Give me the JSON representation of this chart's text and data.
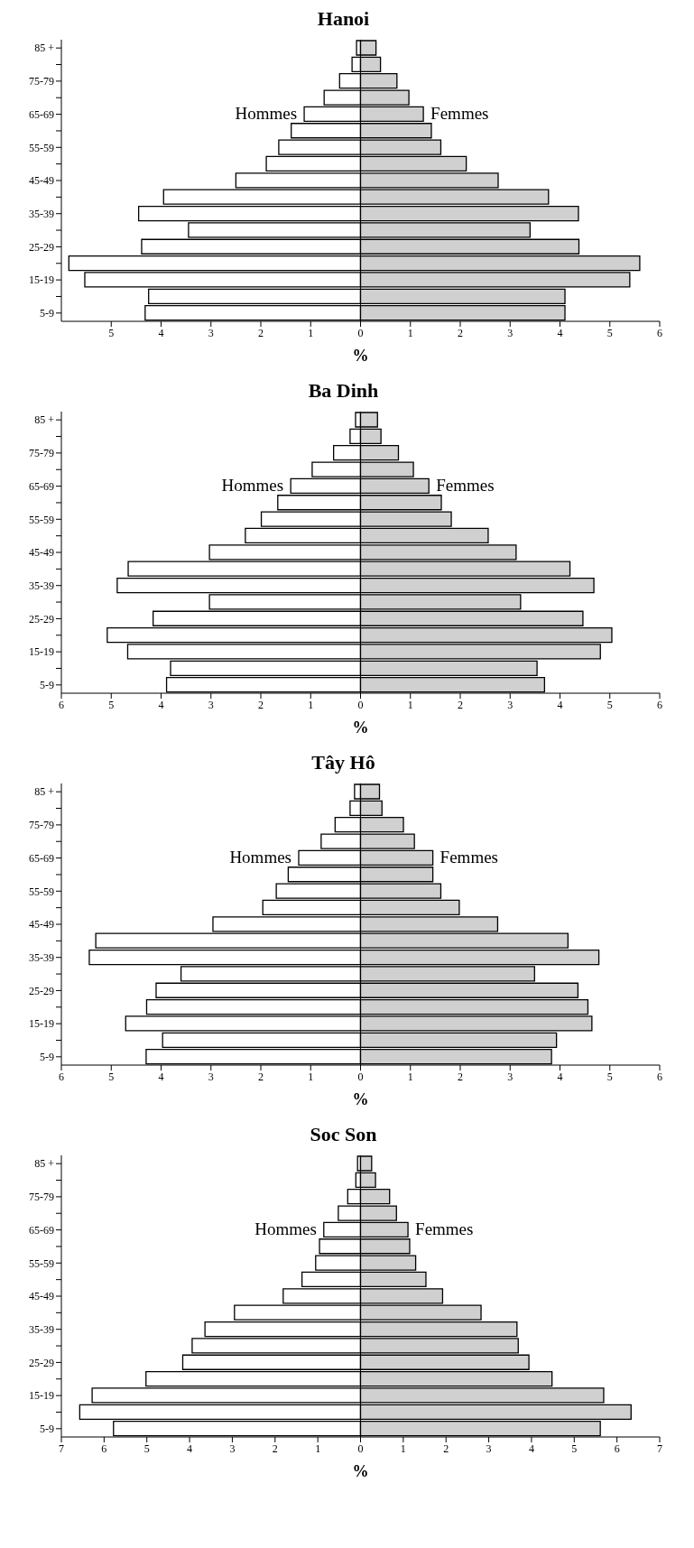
{
  "chart_data": [
    {
      "type": "bar",
      "orientation": "horizontal",
      "stacked": true,
      "title": "Hanoi",
      "xlabel": "%",
      "categories": [
        "85 +",
        null,
        "75-79",
        null,
        "65-69",
        null,
        "55-59",
        null,
        "45-49",
        null,
        "35-39",
        null,
        "25-29",
        null,
        "15-19",
        null,
        "5-9"
      ],
      "series": [
        {
          "name": "Hommes",
          "color": "#ffffff",
          "values": [
            -0.08,
            -0.17,
            -0.42,
            -0.73,
            -1.13,
            -1.39,
            -1.64,
            -1.89,
            -2.5,
            -3.95,
            -4.45,
            -3.45,
            -4.39,
            -5.85,
            -5.53,
            -4.25,
            -4.32
          ]
        },
        {
          "name": "Femmes",
          "color": "#d0d0d0",
          "values": [
            0.31,
            0.4,
            0.73,
            0.97,
            1.26,
            1.42,
            1.61,
            2.12,
            2.76,
            3.77,
            4.37,
            3.4,
            4.38,
            5.6,
            5.4,
            4.1,
            4.1
          ]
        }
      ],
      "xlim": [
        -6,
        6
      ],
      "xticks": [
        {
          "value": -5,
          "label": "5"
        },
        {
          "value": -4,
          "label": "4"
        },
        {
          "value": -3,
          "label": "3"
        },
        {
          "value": -2,
          "label": "2"
        },
        {
          "value": -1,
          "label": "1"
        },
        0,
        1,
        2,
        3,
        4,
        5,
        6
      ]
    },
    {
      "type": "bar",
      "orientation": "horizontal",
      "stacked": true,
      "title": "Ba Dinh",
      "xlabel": "%",
      "categories": [
        "85 +",
        null,
        "75-79",
        null,
        "65-69",
        null,
        "55-59",
        null,
        "45-49",
        null,
        "35-39",
        null,
        "25-29",
        null,
        "15-19",
        null,
        "5-9"
      ],
      "series": [
        {
          "name": "Hommes",
          "color": "#ffffff",
          "values": [
            -0.1,
            -0.21,
            -0.54,
            -0.97,
            -1.4,
            -1.66,
            -1.99,
            -2.31,
            -3.03,
            -4.66,
            -4.88,
            -3.03,
            -4.16,
            -5.08,
            -4.67,
            -3.81,
            -3.89
          ]
        },
        {
          "name": "Femmes",
          "color": "#d0d0d0",
          "values": [
            0.34,
            0.41,
            0.76,
            1.06,
            1.37,
            1.62,
            1.82,
            2.56,
            3.12,
            4.2,
            4.68,
            3.21,
            4.46,
            5.04,
            4.81,
            3.54,
            3.69
          ]
        }
      ],
      "xlim": [
        -6,
        6
      ],
      "xticks": [
        {
          "value": -6,
          "label": "6"
        },
        {
          "value": -5,
          "label": "5"
        },
        {
          "value": -4,
          "label": "4"
        },
        {
          "value": -3,
          "label": "3"
        },
        {
          "value": -2,
          "label": "2"
        },
        {
          "value": -1,
          "label": "1"
        },
        0,
        1,
        2,
        3,
        4,
        5,
        6
      ]
    },
    {
      "type": "bar",
      "orientation": "horizontal",
      "stacked": true,
      "title": "Tây Hô",
      "xlabel": "%",
      "categories": [
        "85 +",
        null,
        "75-79",
        null,
        "65-69",
        null,
        "55-59",
        null,
        "45-49",
        null,
        "35-39",
        null,
        "25-29",
        null,
        "15-19",
        null,
        "5-9"
      ],
      "series": [
        {
          "name": "Hommes",
          "color": "#ffffff",
          "values": [
            -0.12,
            -0.21,
            -0.51,
            -0.79,
            -1.24,
            -1.45,
            -1.69,
            -1.96,
            -2.96,
            -5.31,
            -5.44,
            -3.6,
            -4.1,
            -4.29,
            -4.71,
            -3.97,
            -4.3
          ]
        },
        {
          "name": "Femmes",
          "color": "#d0d0d0",
          "values": [
            0.38,
            0.43,
            0.86,
            1.08,
            1.45,
            1.45,
            1.61,
            1.98,
            2.75,
            4.16,
            4.78,
            3.49,
            4.36,
            4.56,
            4.64,
            3.93,
            3.83
          ]
        }
      ],
      "xlim": [
        -6,
        6
      ],
      "xticks": [
        {
          "value": -6,
          "label": "6"
        },
        {
          "value": -5,
          "label": "5"
        },
        {
          "value": -4,
          "label": "4"
        },
        {
          "value": -3,
          "label": "3"
        },
        {
          "value": -2,
          "label": "2"
        },
        {
          "value": -1,
          "label": "1"
        },
        0,
        1,
        2,
        3,
        4,
        5,
        6
      ]
    },
    {
      "type": "bar",
      "orientation": "horizontal",
      "stacked": true,
      "title": "Soc Son",
      "xlabel": "%",
      "categories": [
        "85 +",
        null,
        "75-79",
        null,
        "65-69",
        null,
        "55-59",
        null,
        "45-49",
        null,
        "35-39",
        null,
        "25-29",
        null,
        "15-19",
        null,
        "5-9"
      ],
      "series": [
        {
          "name": "Hommes",
          "color": "#ffffff",
          "values": [
            -0.07,
            -0.11,
            -0.3,
            -0.52,
            -0.86,
            -0.96,
            -1.05,
            -1.37,
            -1.81,
            -2.95,
            -3.64,
            -3.94,
            -4.16,
            -5.02,
            -6.28,
            -6.57,
            -5.78
          ]
        },
        {
          "name": "Femmes",
          "color": "#d0d0d0",
          "values": [
            0.26,
            0.35,
            0.68,
            0.84,
            1.11,
            1.15,
            1.29,
            1.53,
            1.92,
            2.82,
            3.66,
            3.69,
            3.94,
            4.48,
            5.69,
            6.33,
            5.61
          ]
        }
      ],
      "xlim": [
        -7,
        7
      ],
      "xticks": [
        {
          "value": -7,
          "label": "7"
        },
        {
          "value": -6,
          "label": "6"
        },
        {
          "value": -5,
          "label": "5"
        },
        {
          "value": -4,
          "label": "4"
        },
        {
          "value": -3,
          "label": "3"
        },
        {
          "value": -2,
          "label": "2"
        },
        {
          "value": -1,
          "label": "1"
        },
        0,
        1,
        2,
        3,
        4,
        5,
        6,
        7
      ]
    }
  ]
}
